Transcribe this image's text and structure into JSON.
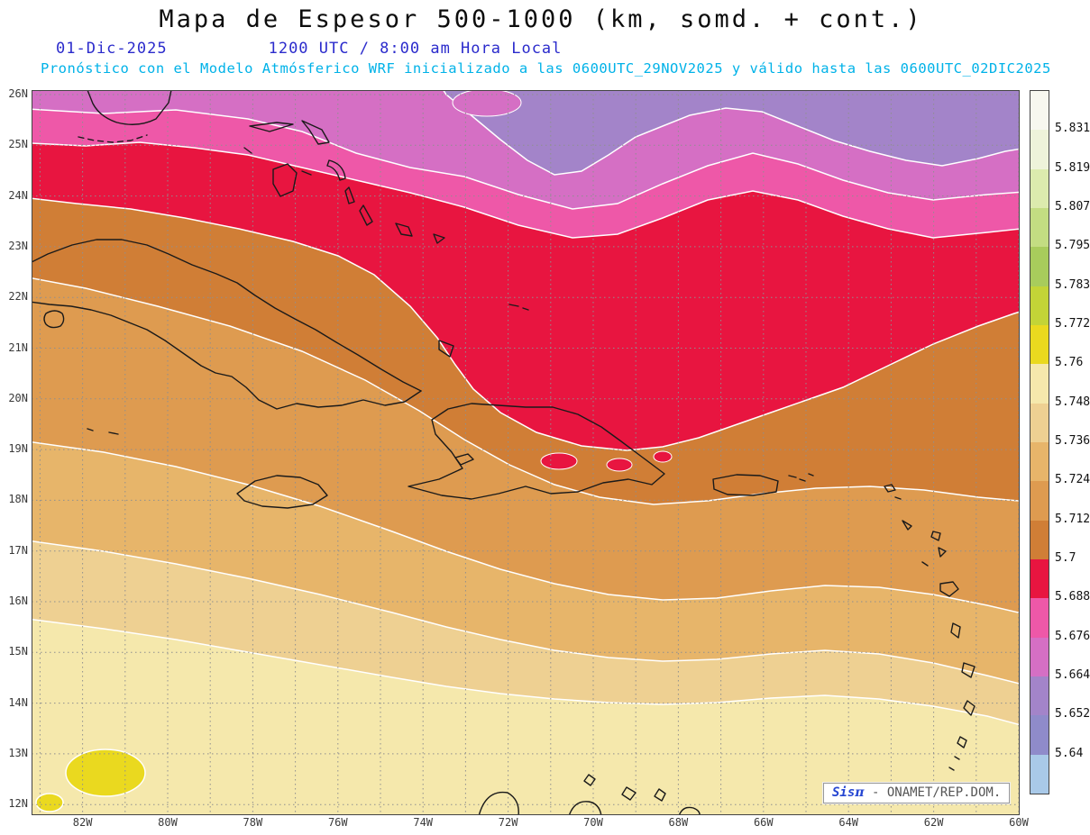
{
  "title": "Mapa de Espesor 500-1000 (km, somd. + cont.)",
  "subtitle": {
    "date": "01-Dic-2025",
    "time": "1200 UTC / 8:00 am Hora Local",
    "forecast": "Pronóstico con el Modelo Atmósferico WRF inicializado a las 0600UTC_29NOV2025 y válido hasta las  0600UTC_02DIC2025"
  },
  "branding": {
    "sis": "Sis",
    "pi": "π",
    "org": "- ONAMET/REP.DOM."
  },
  "axes": {
    "lat": [
      "26N",
      "25N",
      "24N",
      "23N",
      "22N",
      "21N",
      "20N",
      "19N",
      "18N",
      "17N",
      "16N",
      "15N",
      "14N",
      "13N",
      "12N"
    ],
    "lon": [
      "82W",
      "80W",
      "78W",
      "76W",
      "74W",
      "72W",
      "70W",
      "68W",
      "66W",
      "64W",
      "62W",
      "60W"
    ]
  },
  "colorbar": {
    "labels": [
      "5.831",
      "5.819",
      "5.807",
      "5.795",
      "5.783",
      "5.772",
      "5.76",
      "5.748",
      "5.736",
      "5.724",
      "5.712",
      "5.7",
      "5.688",
      "5.676",
      "5.664",
      "5.652",
      "5.64"
    ],
    "colors": [
      "#f7f7ef",
      "#eef3da",
      "#dcebae",
      "#c3dd82",
      "#a8cc5c",
      "#c3d437",
      "#ead91f",
      "#f5e8ac",
      "#eed092",
      "#e7b56a",
      "#de9b50",
      "#d07e36",
      "#e81540",
      "#ee58a8",
      "#d56fc4",
      "#a384c9",
      "#8f8bca",
      "#a9c9e8"
    ]
  },
  "chart_data": {
    "type": "heatmap",
    "subtype": "filled-contour-weather-map",
    "variable": "Espesor 500-1000",
    "units": "km",
    "model": "WRF",
    "date": "01-Dic-2025",
    "valid_time": "1200 UTC / 8:00 am Hora Local",
    "init": "0600UTC_29NOV2025",
    "valid_until": "0600UTC_02DIC2025",
    "region": {
      "lat_min": "12N",
      "lat_max": "26N",
      "lon_min": "83W",
      "lon_max": "60W"
    },
    "levels": [
      5.64,
      5.652,
      5.664,
      5.676,
      5.688,
      5.7,
      5.712,
      5.724,
      5.736,
      5.748,
      5.76,
      5.772,
      5.783,
      5.795,
      5.807,
      5.819,
      5.831
    ],
    "gradient_note": "thickness decreases northward: yellow/cream south (~5.76) through orange and red to pink/purple north (~5.64)",
    "grid": "1-degree dashed graticule",
    "legend_position": "right vertical colorbar"
  }
}
